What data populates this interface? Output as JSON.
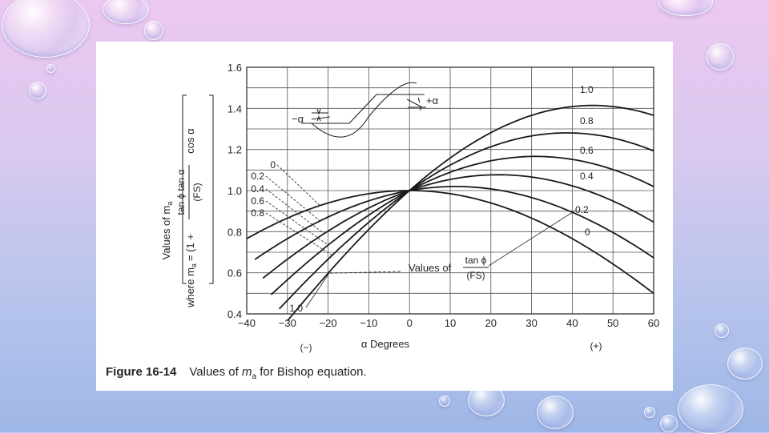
{
  "figure": {
    "number": "Figure 16-14",
    "caption_prefix": "Values of ",
    "caption_symbol": "m",
    "caption_subscript": "a",
    "caption_suffix": " for Bishop equation."
  },
  "chart_data": {
    "type": "line",
    "title": "",
    "xlabel": "α Degrees",
    "xlabel_negative": "(−)",
    "xlabel_positive": "(+)",
    "ylabel": {
      "main": "Values of m",
      "main_sub": "a",
      "where": "where m",
      "where_sub": "a",
      "formula_lead": "= (1 +",
      "numerator": "tan ϕ tan α",
      "denominator": "(FS)",
      "trailing": "cos α"
    },
    "xlim": [
      -40,
      60
    ],
    "ylim": [
      0.4,
      1.6
    ],
    "x_ticks": [
      -40,
      -30,
      -20,
      -10,
      0,
      10,
      20,
      30,
      40,
      50,
      60
    ],
    "x_tick_labels": [
      "−40",
      "−30",
      "−20",
      "−10",
      "0",
      "10",
      "20",
      "30",
      "40",
      "50",
      "60"
    ],
    "y_ticks": [
      0.4,
      0.6,
      0.8,
      1.0,
      1.2,
      1.4,
      1.6
    ],
    "y_tick_labels": [
      "0.4",
      "0.6",
      "0.8",
      "1.0",
      "1.2",
      "1.4",
      "1.6"
    ],
    "x_grid": [
      -40,
      -30,
      -20,
      -10,
      0,
      10,
      20,
      30,
      40,
      50,
      60
    ],
    "y_grid": [
      0.4,
      0.5,
      0.6,
      0.7,
      0.8,
      0.9,
      1.0,
      1.1,
      1.2,
      1.3,
      1.4,
      1.5,
      1.6
    ],
    "grid": true,
    "series": [
      {
        "name": "0",
        "x_range": [
          -40,
          60
        ]
      },
      {
        "name": "0.2",
        "x_range": [
          -38,
          60
        ]
      },
      {
        "name": "0.4",
        "x_range": [
          -36,
          60
        ]
      },
      {
        "name": "0.6",
        "x_range": [
          -34,
          60
        ]
      },
      {
        "name": "0.8",
        "x_range": [
          -32,
          60
        ]
      },
      {
        "name": "1.0",
        "x_range": [
          -30,
          60
        ]
      }
    ],
    "annotation_title": "Values of",
    "annotation_frac_num": "tan ϕ",
    "annotation_frac_den": "(FS)",
    "left_labels": [
      "0",
      "0.2",
      "0.4",
      "0.6",
      "0.8"
    ],
    "bottom_label": "1.0",
    "right_labels": [
      "1.0",
      "0.8",
      "0.6",
      "0.4",
      "0.2",
      "0"
    ],
    "inset": {
      "plus_alpha": "+α",
      "minus_alpha": "−α"
    }
  }
}
